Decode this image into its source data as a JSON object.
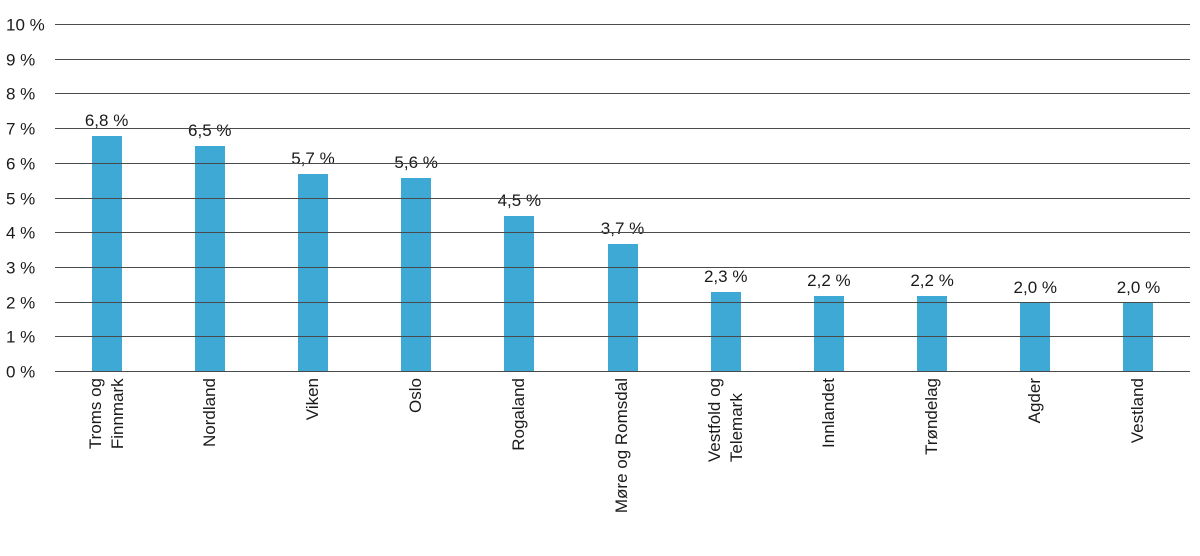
{
  "chart_data": {
    "type": "bar",
    "title": "",
    "xlabel": "",
    "ylabel": "",
    "categories": [
      "Troms og\nFinnmark",
      "Nordland",
      "Viken",
      "Oslo",
      "Rogaland",
      "Møre og Romsdal",
      "Vestfold og\nTelemark",
      "Innlandet",
      "Trøndelag",
      "Agder",
      "Vestland"
    ],
    "values": [
      6.8,
      6.5,
      5.7,
      5.6,
      4.5,
      3.7,
      2.3,
      2.2,
      2.2,
      2.0,
      2.0
    ],
    "value_labels": [
      "6,8 %",
      "6,5 %",
      "5,7 %",
      "5,6 %",
      "4,5 %",
      "3,7 %",
      "2,3 %",
      "2,2 %",
      "2,2 %",
      "2,0 %",
      "2,0 %"
    ],
    "yticks": [
      "0 %",
      "1 %",
      "2 %",
      "3 %",
      "4 %",
      "5 %",
      "6 %",
      "7 %",
      "8 %",
      "9 %",
      "10 %"
    ],
    "ylim": [
      0,
      10
    ],
    "grid": true,
    "legend": "none",
    "bar_color": "#3fa9d6",
    "grid_color": "#4a4a4a",
    "text_color": "#1a1a1a"
  }
}
